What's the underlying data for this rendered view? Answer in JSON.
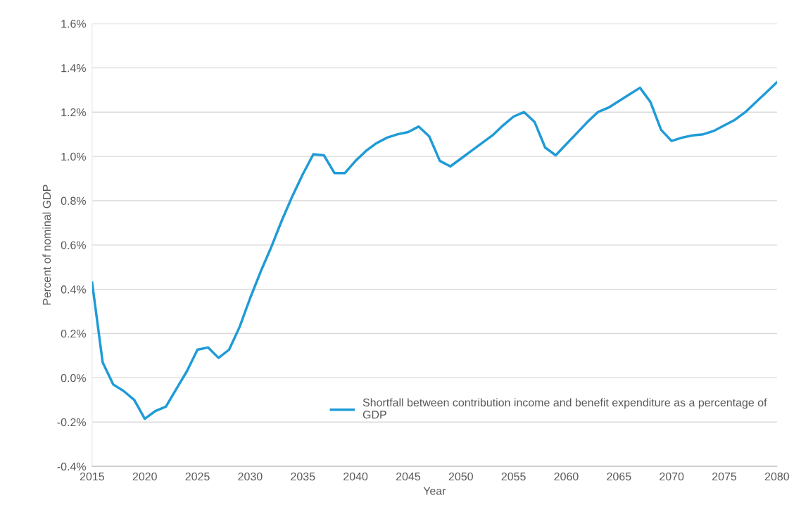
{
  "chart_data": {
    "type": "line",
    "xlabel": "Year",
    "ylabel": "Percent of nominal GDP",
    "x": [
      2015,
      2016,
      2017,
      2018,
      2019,
      2020,
      2021,
      2022,
      2023,
      2024,
      2025,
      2026,
      2027,
      2028,
      2029,
      2030,
      2031,
      2032,
      2033,
      2034,
      2035,
      2036,
      2037,
      2038,
      2039,
      2040,
      2041,
      2042,
      2043,
      2044,
      2045,
      2046,
      2047,
      2048,
      2049,
      2050,
      2051,
      2052,
      2053,
      2054,
      2055,
      2056,
      2057,
      2058,
      2059,
      2060,
      2061,
      2062,
      2063,
      2064,
      2065,
      2066,
      2067,
      2068,
      2069,
      2070,
      2071,
      2072,
      2073,
      2074,
      2075,
      2076,
      2077,
      2078,
      2079,
      2080
    ],
    "series": [
      {
        "name": "Shortfall between contribution income and benefit expenditure as a percentage of GDP",
        "color": "#1f9bd7",
        "values": [
          0.43,
          0.07,
          -0.03,
          -0.06,
          -0.1,
          -0.185,
          -0.15,
          -0.13,
          -0.05,
          0.03,
          0.127,
          0.137,
          0.09,
          0.127,
          0.23,
          0.36,
          0.48,
          0.59,
          0.71,
          0.82,
          0.92,
          1.01,
          1.005,
          0.925,
          0.925,
          0.98,
          1.025,
          1.06,
          1.085,
          1.1,
          1.11,
          1.135,
          1.09,
          0.98,
          0.955,
          0.99,
          1.025,
          1.06,
          1.095,
          1.14,
          1.18,
          1.2,
          1.155,
          1.04,
          1.005,
          1.055,
          1.105,
          1.155,
          1.2,
          1.22,
          1.25,
          1.28,
          1.31,
          1.245,
          1.12,
          1.07,
          1.085,
          1.095,
          1.1,
          1.115,
          1.14,
          1.165,
          1.2,
          1.245,
          1.29,
          1.335
        ]
      }
    ],
    "xlim": [
      2015,
      2080
    ],
    "xticks": [
      2015,
      2020,
      2025,
      2030,
      2035,
      2040,
      2045,
      2050,
      2055,
      2060,
      2065,
      2070,
      2075,
      2080
    ],
    "ylim": [
      -0.4,
      1.6
    ],
    "yticks": [
      {
        "value": -0.4,
        "label": "-0.4%"
      },
      {
        "value": -0.2,
        "label": "-0.2%"
      },
      {
        "value": 0,
        "label": "0.0%"
      },
      {
        "value": 0.2,
        "label": "0.2%"
      },
      {
        "value": 0.4,
        "label": "0.4%"
      },
      {
        "value": 0.6,
        "label": "0.6%"
      },
      {
        "value": 0.8,
        "label": "0.8%"
      },
      {
        "value": 1.0,
        "label": "1.0%"
      },
      {
        "value": 1.2,
        "label": "1.2%"
      },
      {
        "value": 1.4,
        "label": "1.4%"
      },
      {
        "value": 1.6,
        "label": "1.6%"
      }
    ],
    "grid": "y",
    "legend": "bottom right",
    "marker": "none",
    "line_style": "solid"
  }
}
